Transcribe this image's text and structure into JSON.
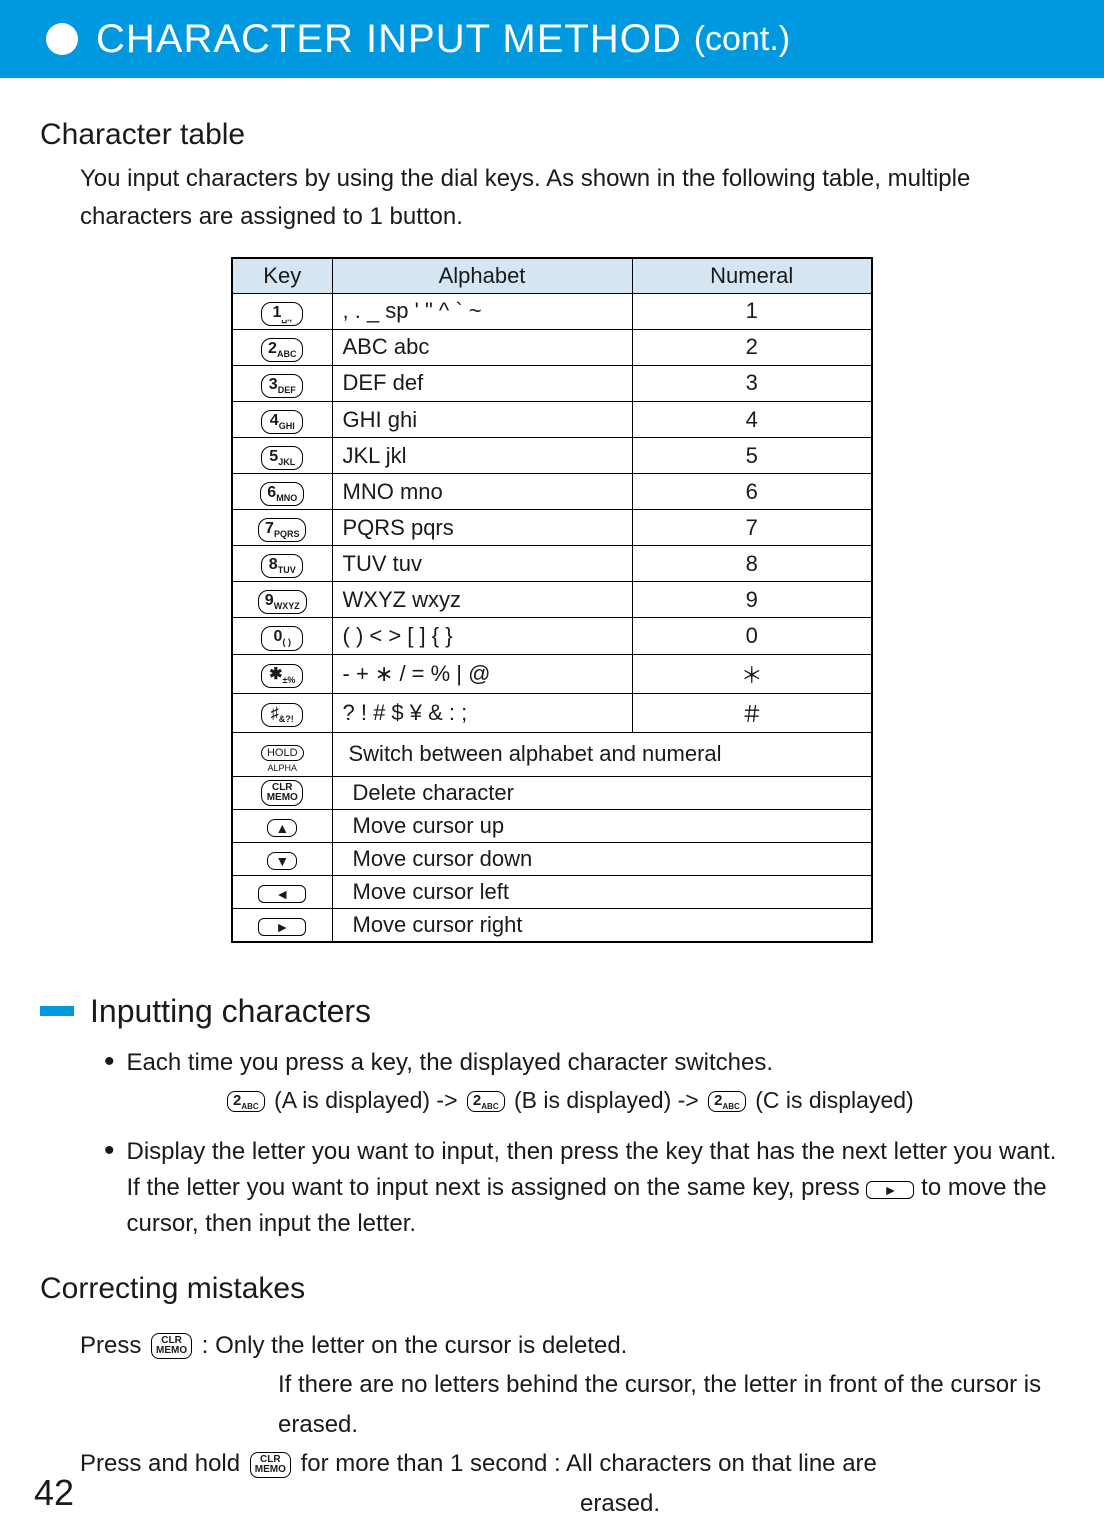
{
  "header": {
    "title": "CHARACTER INPUT METHOD",
    "cont": "(cont.)"
  },
  "section1": {
    "title": "Character table",
    "desc": "You input characters by using the dial keys. As shown in the following table, multiple characters are assigned to 1 button."
  },
  "table": {
    "headers": {
      "key": "Key",
      "alpha": "Alphabet",
      "num": "Numeral"
    },
    "rows": [
      {
        "key_main": "1",
        "key_sub": "␣.,",
        "alpha": ", . _ sp ' \" ^ ` ~",
        "num": "1"
      },
      {
        "key_main": "2",
        "key_sub": "ABC",
        "alpha": "ABC abc",
        "num": "2"
      },
      {
        "key_main": "3",
        "key_sub": "DEF",
        "alpha": "DEF def",
        "num": "3"
      },
      {
        "key_main": "4",
        "key_sub": "GHI",
        "alpha": "GHI ghi",
        "num": "4"
      },
      {
        "key_main": "5",
        "key_sub": "JKL",
        "alpha": "JKL jkl",
        "num": "5"
      },
      {
        "key_main": "6",
        "key_sub": "MNO",
        "alpha": "MNO mno",
        "num": "6"
      },
      {
        "key_main": "7",
        "key_sub": "PQRS",
        "alpha": "PQRS pqrs",
        "num": "7"
      },
      {
        "key_main": "8",
        "key_sub": "TUV",
        "alpha": "TUV tuv",
        "num": "8"
      },
      {
        "key_main": "9",
        "key_sub": "WXYZ",
        "alpha": "WXYZ wxyz",
        "num": "9"
      },
      {
        "key_main": "0",
        "key_sub": "( )",
        "alpha": "( ) < > [ ] { }",
        "num": "0"
      },
      {
        "key_main": "✱",
        "key_sub": "±%",
        "alpha": "- + ∗ / = % | @",
        "num": "＊"
      },
      {
        "key_main": "♯",
        "key_sub": "&?!",
        "alpha": "? ! # $ ¥ & : ;",
        "num": "＃"
      }
    ],
    "action_rows": [
      {
        "btn": "HOLD",
        "sub": "ALPHA",
        "desc": "Switch between alphabet and numeral"
      },
      {
        "btn": "CLR\nMEMO",
        "desc": "Delete character"
      },
      {
        "arrow": "▲",
        "desc": "Move cursor up"
      },
      {
        "arrow": "▼",
        "desc": "Move cursor down"
      },
      {
        "arrow": "◄",
        "wide": true,
        "desc": "Move cursor left"
      },
      {
        "arrow": "►",
        "wide": true,
        "desc": "Move cursor right"
      }
    ]
  },
  "section2": {
    "title": "Inputting characters",
    "b1": "Each time you press a key, the displayed character switches.",
    "ex_a": "(A is displayed) ->",
    "ex_b": "(B is displayed) ->",
    "ex_c": "(C is displayed)",
    "ex_key_main": "2",
    "ex_key_sub": "ABC",
    "b2a": "Display the letter you want to input, then press the key that has the next letter you want. If the letter you want to input next is assigned on the same key, press",
    "b2b": "to move the cursor, then input the letter."
  },
  "correcting": {
    "title": "Correcting mistakes",
    "l1a": "Press ",
    "l1b": " : Only the letter on the cursor is deleted.",
    "l2": "If there are no letters behind the cursor, the letter in front of the cursor is erased.",
    "l3a": "Press and hold ",
    "l3b": " for more than 1 second : All characters on that line are",
    "l4": "erased.",
    "clr_main": "CLR",
    "clr_sub": "MEMO"
  },
  "page": "42"
}
